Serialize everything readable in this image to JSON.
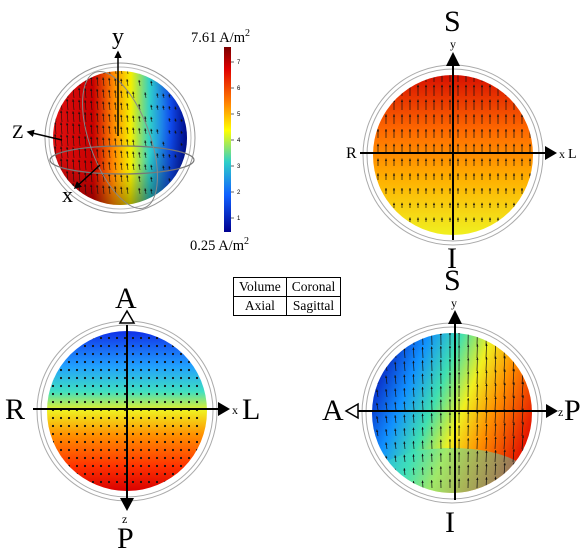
{
  "colorbar": {
    "max_label": "7.61 A/m",
    "max_sup": "2",
    "min_label": "0.25 A/m",
    "min_sup": "2",
    "ticks": [
      "7",
      "6",
      "5",
      "4",
      "3",
      "2",
      "1"
    ],
    "colors": [
      "#7a0000",
      "#e00000",
      "#ff8000",
      "#ffff00",
      "#30d0c8",
      "#1060ff",
      "#000090"
    ]
  },
  "panels": {
    "volume": {
      "axis_y": "y",
      "axis_z": "Z",
      "axis_x": "x"
    },
    "coronal": {
      "top": "S",
      "bottom": "I",
      "left": "R",
      "right": "L",
      "axis_small_top": "y",
      "axis_small_right": "x"
    },
    "axial": {
      "top": "A",
      "bottom": "P",
      "left": "R",
      "right": "L",
      "axis_small_bottom": "z",
      "axis_small_right": "x"
    },
    "sagittal": {
      "top": "S",
      "bottom": "I",
      "left": "A",
      "right": "P",
      "axis_small_top": "y",
      "axis_small_right": "z"
    }
  },
  "legend": {
    "r1c1": "Volume",
    "r1c2": "Coronal",
    "r2c1": "Axial",
    "r2c2": "Sagittal"
  }
}
